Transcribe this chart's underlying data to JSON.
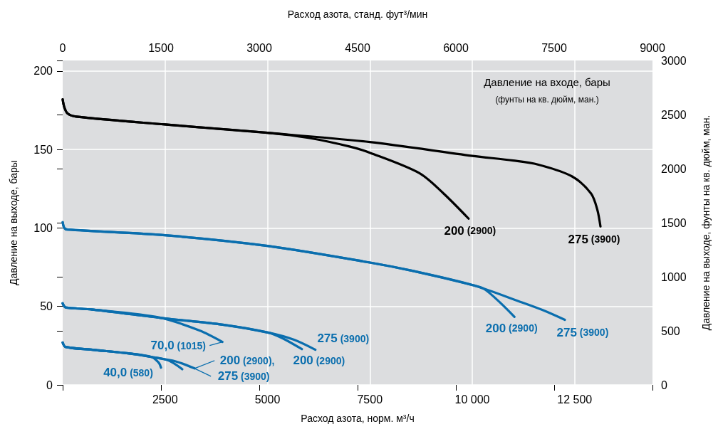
{
  "chart_data": {
    "type": "line",
    "xlabel": "Расход азота, норм. м³/ч",
    "x2label": "Расход азота, станд. фут³/мин",
    "ylabel": "Давление на выходе, бары",
    "y2label": "Давление на выходе, фунты на кв. дюйм, ман.",
    "xlim": [
      0,
      14400
    ],
    "xticks": [
      2500,
      5000,
      7500,
      {
        "value": 10000,
        "label": "10 000"
      },
      {
        "value": 12500,
        "label": "12 500"
      }
    ],
    "x2lim": [
      0,
      9000
    ],
    "x2ticks": [
      0,
      1500,
      3000,
      4500,
      6000,
      7500,
      9000
    ],
    "ylim": [
      0,
      206.8
    ],
    "yticks": [
      0,
      50,
      100,
      150,
      200
    ],
    "y2lim": [
      0,
      3000
    ],
    "y2ticks": [
      0,
      500,
      1000,
      1500,
      2000,
      2500,
      3000
    ],
    "grid": true,
    "marker": "none",
    "line_style": "solid",
    "series": [
      {
        "color": "#000000",
        "x": [
          0,
          40,
          120,
          330,
          2500,
          5000,
          7500,
          10000,
          11000,
          11600,
          12430,
          12900,
          13050,
          13130
        ],
        "values": [
          182,
          177,
          173,
          171,
          166,
          160.7,
          154.8,
          146,
          143,
          140.5,
          133,
          122,
          112,
          101
        ]
      },
      {
        "color": "#000000",
        "x": [
          0,
          40,
          120,
          330,
          2500,
          5000,
          6000,
          7000,
          7500,
          8710,
          9300,
          9910
        ],
        "values": [
          182,
          177,
          173,
          171,
          166,
          160.7,
          157.5,
          152,
          148,
          135,
          122,
          106
        ]
      },
      {
        "color": "#0a6eae",
        "x": [
          0,
          40,
          120,
          2500,
          5000,
          7500,
          8560,
          10030,
          11170,
          11740,
          12260
        ],
        "values": [
          103.7,
          100,
          99,
          95.4,
          88.6,
          78,
          72.6,
          63.5,
          53,
          47.5,
          41.5
        ]
      },
      {
        "color": "#0a6eae",
        "x": [
          0,
          40,
          120,
          2500,
          5000,
          7500,
          8560,
          10030,
          10300,
          10700,
          11030
        ],
        "values": [
          103.7,
          100,
          99,
          95.4,
          88.6,
          78,
          72.6,
          63.5,
          61,
          52,
          43.4
        ]
      },
      {
        "color": "#0a6eae",
        "x": [
          0,
          40,
          90,
          730,
          2350,
          3340,
          3900
        ],
        "values": [
          52,
          50,
          49.3,
          48,
          43,
          34.7,
          27.4
        ]
      },
      {
        "color": "#0a6eae",
        "x": [
          0,
          40,
          90,
          730,
          2470,
          3910,
          5030,
          5370,
          5840
        ],
        "values": [
          52,
          50,
          49.3,
          48,
          42.5,
          38.4,
          33.3,
          29.7,
          22.8
        ]
      },
      {
        "color": "#0a6eae",
        "x": [
          0,
          40,
          90,
          730,
          2470,
          3910,
          5030,
          5650,
          6170
        ],
        "values": [
          52,
          50,
          49.3,
          48,
          42.5,
          38.4,
          33.3,
          28.8,
          22.4
        ]
      },
      {
        "color": "#0a6eae",
        "x": [
          0,
          70,
          730,
          1600,
          2170,
          2350,
          2400
        ],
        "values": [
          27,
          24.2,
          22.4,
          20.1,
          17.8,
          14,
          11
        ]
      },
      {
        "color": "#0a6eae",
        "x": [
          0,
          70,
          730,
          1600,
          2170,
          2590,
          2920
        ],
        "values": [
          27,
          24.2,
          22.4,
          20.1,
          17.8,
          15.5,
          10
        ]
      },
      {
        "color": "#0a6eae",
        "x": [
          0,
          70,
          730,
          1600,
          2170,
          2760,
          3220
        ],
        "values": [
          27,
          24.2,
          22.4,
          20.1,
          17.8,
          15,
          10.5
        ]
      }
    ],
    "annotations": [
      "Давление на входе, бары",
      "(фунты на кв. дюйм, ман.)",
      {
        "text": "200 (2900)",
        "x": 9910,
        "y": 106
      },
      {
        "text": "275 (3900)",
        "x": 13130,
        "y": 101
      },
      {
        "text": "200 (2900)",
        "x": 11030,
        "y": 43.4
      },
      {
        "text": "275 (3900)",
        "x": 12260,
        "y": 41.5
      },
      {
        "text": "275 (3900)",
        "x": 6170,
        "y": 22.4
      },
      {
        "text": "200 (2900)",
        "x": 5840,
        "y": 22.8
      },
      {
        "text": "70,0 (1015)",
        "x": 3900,
        "y": 27.4
      },
      {
        "text": "200 (2900),",
        "x": 3220,
        "y": 10.5
      },
      {
        "text": "275 (3900)",
        "x": 3220,
        "y": 10.5
      },
      {
        "text": "40,0 (580)",
        "x": 2400,
        "y": 11
      }
    ]
  }
}
